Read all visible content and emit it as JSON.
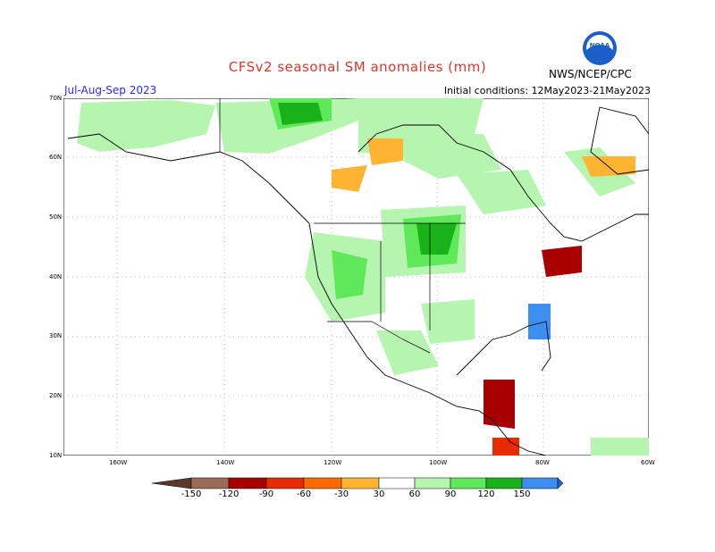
{
  "header": {
    "title": "CFSv2 seasonal SM anomalies (mm)",
    "period": "Jul-Aug-Sep 2023",
    "initial_conditions": "Initial conditions: 12May2023-21May2023",
    "agency": "NWS/NCEP/CPC",
    "logo_text": "NOAA"
  },
  "map": {
    "lat_labels": [
      "70N",
      "60N",
      "50N",
      "40N",
      "30N",
      "20N",
      "10N"
    ],
    "lon_labels": [
      "160W",
      "140W",
      "120W",
      "100W",
      "80W",
      "60W"
    ],
    "land_color": "#ffffff",
    "coast_color": "#000000",
    "grid_style": "dotted"
  },
  "legend": {
    "labels": [
      "-150",
      "-120",
      "-90",
      "-60",
      "-30",
      "30",
      "60",
      "90",
      "120",
      "150"
    ],
    "colors": {
      "below_-150": "#5a3a2a",
      "-150_-120": "#9b6b5a",
      "-120_-90": "#a80000",
      "-90_-60": "#e82a00",
      "-60_-30": "#ff6a00",
      "-30_0": "#ffb431",
      "0_30": "#ffffff",
      "30_60": "#b5f5b0",
      "60_90": "#5ee85a",
      "90_120": "#1ab21a",
      "120_150": "#3c8ef0",
      "above_150": "#1f5fd6"
    }
  }
}
